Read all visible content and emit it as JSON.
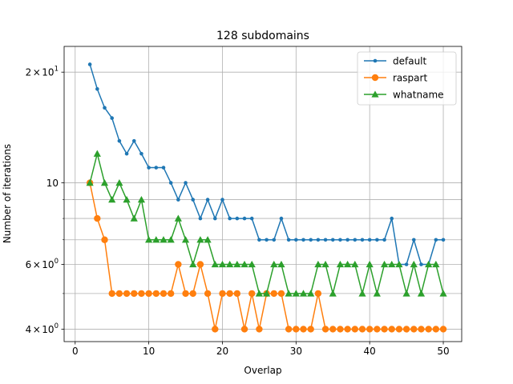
{
  "chart_data": {
    "type": "line",
    "title": "128 subdomains",
    "xlabel": "Overlap",
    "ylabel": "Number of iterations",
    "yscale": "log",
    "xlim": [
      -1.5,
      52.5
    ],
    "ylim": [
      3.7,
      23.5
    ],
    "xticks": [
      0,
      10,
      20,
      30,
      40,
      50
    ],
    "xtick_labels": [
      "0",
      "10",
      "20",
      "30",
      "40",
      "50"
    ],
    "yticks_major": [
      {
        "value": 4,
        "base": "4",
        "sign": "×",
        "exp_base": "10",
        "exp": "0"
      },
      {
        "value": 6,
        "base": "6",
        "sign": "×",
        "exp_base": "10",
        "exp": "0"
      },
      {
        "value": 10,
        "label": "10"
      },
      {
        "value": 20,
        "base": "2",
        "sign": "×",
        "exp_base": "10",
        "exp": "1"
      }
    ],
    "ygrid_values": [
      4,
      5,
      6,
      7,
      8,
      9,
      10,
      20
    ],
    "grid": true,
    "legend_position": "top-right",
    "x": [
      2,
      3,
      4,
      5,
      6,
      7,
      8,
      9,
      10,
      11,
      12,
      13,
      14,
      15,
      16,
      17,
      18,
      19,
      20,
      21,
      22,
      23,
      24,
      25,
      26,
      27,
      28,
      29,
      30,
      31,
      32,
      33,
      34,
      35,
      36,
      37,
      38,
      39,
      40,
      41,
      42,
      43,
      44,
      45,
      46,
      47,
      48,
      49,
      50
    ],
    "series": [
      {
        "name": "default",
        "color": "#1f77b4",
        "marker": "point",
        "values": [
          21,
          18,
          16,
          15,
          13,
          12,
          13,
          12,
          11,
          11,
          11,
          10,
          9,
          10,
          9,
          8,
          9,
          8,
          9,
          8,
          8,
          8,
          8,
          7,
          7,
          7,
          8,
          7,
          7,
          7,
          7,
          7,
          7,
          7,
          7,
          7,
          7,
          7,
          7,
          7,
          7,
          8,
          6,
          6,
          7,
          6,
          6,
          7,
          7
        ]
      },
      {
        "name": "raspart",
        "color": "#ff7f0e",
        "marker": "circle",
        "values": [
          10,
          8,
          7,
          5,
          5,
          5,
          5,
          5,
          5,
          5,
          5,
          5,
          6,
          5,
          5,
          6,
          5,
          4,
          5,
          5,
          5,
          4,
          5,
          4,
          5,
          5,
          5,
          4,
          4,
          4,
          4,
          5,
          4,
          4,
          4,
          4,
          4,
          4,
          4,
          4,
          4,
          4,
          4,
          4,
          4,
          4,
          4,
          4,
          4
        ]
      },
      {
        "name": "whatname",
        "color": "#2ca02c",
        "marker": "triangle",
        "values": [
          10,
          12,
          10,
          9,
          10,
          9,
          8,
          9,
          7,
          7,
          7,
          7,
          8,
          7,
          6,
          7,
          7,
          6,
          6,
          6,
          6,
          6,
          6,
          5,
          5,
          6,
          6,
          5,
          5,
          5,
          5,
          6,
          6,
          5,
          6,
          6,
          6,
          5,
          6,
          5,
          6,
          6,
          6,
          5,
          6,
          5,
          6,
          6,
          5
        ]
      }
    ]
  }
}
